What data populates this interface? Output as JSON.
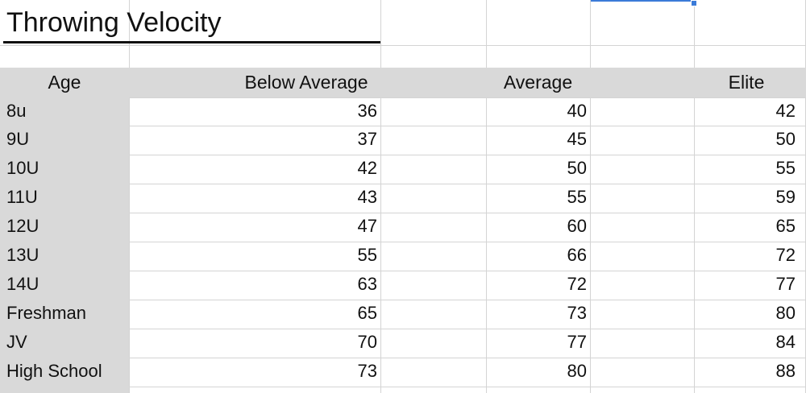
{
  "title": "Throwing Velocity",
  "headers": [
    "Age",
    "Below Average",
    "Average",
    "Elite"
  ],
  "rows": [
    {
      "age": "8u",
      "below": "36",
      "average": "40",
      "elite": "42"
    },
    {
      "age": "9U",
      "below": "37",
      "average": "45",
      "elite": "50"
    },
    {
      "age": "10U",
      "below": "42",
      "average": "50",
      "elite": "55"
    },
    {
      "age": "11U",
      "below": "43",
      "average": "55",
      "elite": "59"
    },
    {
      "age": "12U",
      "below": "47",
      "average": "60",
      "elite": "65"
    },
    {
      "age": "13U",
      "below": "55",
      "average": "66",
      "elite": "72"
    },
    {
      "age": "14U",
      "below": "63",
      "average": "72",
      "elite": "77"
    },
    {
      "age": "Freshman",
      "below": "65",
      "average": "73",
      "elite": "80"
    },
    {
      "age": "JV",
      "below": "70",
      "average": "77",
      "elite": "84"
    },
    {
      "age": "High School",
      "below": "73",
      "average": "80",
      "elite": "88"
    }
  ],
  "colors": {
    "header_fill": "#d9d9d9",
    "selection": "#3b7bd8",
    "gridline": "#d4d4d4"
  }
}
